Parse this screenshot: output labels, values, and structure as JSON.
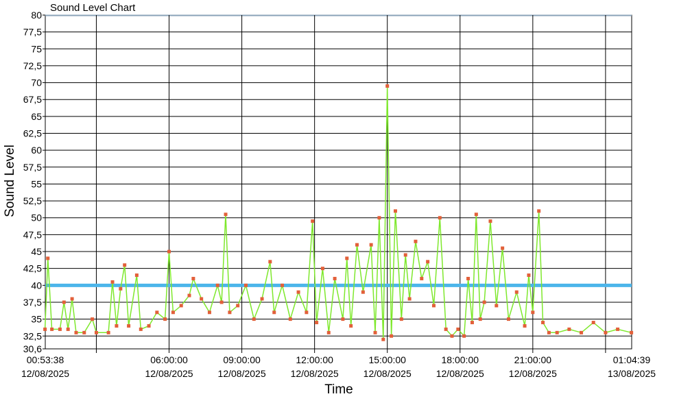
{
  "chart_data": {
    "type": "line",
    "title": "Sound Level Chart",
    "xlabel": "Time",
    "ylabel": "Sound Level",
    "ylim": [
      30.6,
      80
    ],
    "xlim": [
      "12/08/2025 00:53:38",
      "13/08/2025 01:04:39"
    ],
    "grid": true,
    "y_ticks": [
      "80",
      "77,5",
      "75",
      "72,5",
      "70",
      "67,5",
      "65",
      "62,5",
      "60",
      "57,5",
      "55",
      "52,5",
      "50",
      "47,5",
      "45",
      "42,5",
      "40",
      "37,5",
      "35",
      "32,5",
      "30,6"
    ],
    "x_ticks": [
      {
        "time": "00:53:38",
        "date": "12/08/2025"
      },
      {
        "time": "06:00:00",
        "date": "12/08/2025"
      },
      {
        "time": "09:00:00",
        "date": "12/08/2025"
      },
      {
        "time": "12:00:00",
        "date": "12/08/2025"
      },
      {
        "time": "15:00:00",
        "date": "12/08/2025"
      },
      {
        "time": "18:00:00",
        "date": "12/08/2025"
      },
      {
        "time": "21:00:00",
        "date": "12/08/2025"
      },
      {
        "time": "01:04:39",
        "date": "13/08/2025"
      }
    ],
    "threshold": {
      "value": 40,
      "color": "#4cb5ea"
    },
    "series": [
      {
        "line_color": "#7ee82c",
        "marker_color": "#e2603a",
        "points": [
          [
            "00:53",
            33.5
          ],
          [
            "01:00",
            44
          ],
          [
            "01:10",
            33.5
          ],
          [
            "01:30",
            33.5
          ],
          [
            "01:40",
            37.5
          ],
          [
            "01:50",
            33.5
          ],
          [
            "02:00",
            38
          ],
          [
            "02:10",
            33
          ],
          [
            "02:30",
            33
          ],
          [
            "02:50",
            35
          ],
          [
            "03:00",
            33
          ],
          [
            "03:30",
            33
          ],
          [
            "03:40",
            40.5
          ],
          [
            "03:50",
            34
          ],
          [
            "04:00",
            39.5
          ],
          [
            "04:10",
            43
          ],
          [
            "04:20",
            34
          ],
          [
            "04:40",
            41.5
          ],
          [
            "04:50",
            33.5
          ],
          [
            "05:10",
            34
          ],
          [
            "05:30",
            36
          ],
          [
            "05:50",
            35
          ],
          [
            "06:00",
            45
          ],
          [
            "06:10",
            36
          ],
          [
            "06:30",
            37
          ],
          [
            "06:50",
            38.5
          ],
          [
            "07:00",
            41
          ],
          [
            "07:20",
            38
          ],
          [
            "07:40",
            36
          ],
          [
            "08:00",
            40
          ],
          [
            "08:10",
            37.5
          ],
          [
            "08:20",
            50.5
          ],
          [
            "08:30",
            36
          ],
          [
            "08:50",
            37
          ],
          [
            "09:10",
            40
          ],
          [
            "09:30",
            35
          ],
          [
            "09:50",
            38
          ],
          [
            "10:10",
            43.5
          ],
          [
            "10:20",
            36
          ],
          [
            "10:40",
            40
          ],
          [
            "11:00",
            35
          ],
          [
            "11:20",
            39
          ],
          [
            "11:40",
            36
          ],
          [
            "11:55",
            49.5
          ],
          [
            "12:05",
            34.5
          ],
          [
            "12:20",
            42.5
          ],
          [
            "12:35",
            33
          ],
          [
            "12:50",
            41
          ],
          [
            "13:10",
            35
          ],
          [
            "13:20",
            44
          ],
          [
            "13:30",
            34
          ],
          [
            "13:45",
            46
          ],
          [
            "14:00",
            39
          ],
          [
            "14:20",
            46
          ],
          [
            "14:30",
            33
          ],
          [
            "14:40",
            50
          ],
          [
            "14:50",
            32
          ],
          [
            "15:00",
            69.5
          ],
          [
            "15:10",
            32.5
          ],
          [
            "15:20",
            51
          ],
          [
            "15:35",
            35
          ],
          [
            "15:45",
            44.5
          ],
          [
            "15:55",
            38
          ],
          [
            "16:10",
            46.5
          ],
          [
            "16:25",
            41
          ],
          [
            "16:40",
            43.5
          ],
          [
            "16:55",
            37
          ],
          [
            "17:10",
            50
          ],
          [
            "17:25",
            33.5
          ],
          [
            "17:40",
            32.5
          ],
          [
            "17:55",
            33.5
          ],
          [
            "18:10",
            32.5
          ],
          [
            "18:20",
            41
          ],
          [
            "18:30",
            34.5
          ],
          [
            "18:40",
            50.5
          ],
          [
            "18:50",
            35
          ],
          [
            "19:00",
            37.5
          ],
          [
            "19:15",
            49.5
          ],
          [
            "19:30",
            37
          ],
          [
            "19:45",
            45.5
          ],
          [
            "20:00",
            35
          ],
          [
            "20:20",
            39
          ],
          [
            "20:40",
            34
          ],
          [
            "20:50",
            41.5
          ],
          [
            "21:00",
            36
          ],
          [
            "21:15",
            51
          ],
          [
            "21:25",
            34.5
          ],
          [
            "21:40",
            33
          ],
          [
            "22:00",
            33
          ],
          [
            "22:30",
            33.5
          ],
          [
            "23:00",
            33
          ],
          [
            "23:30",
            34.5
          ],
          [
            "00:00",
            33
          ],
          [
            "00:30",
            33.5
          ],
          [
            "01:04",
            33
          ]
        ]
      }
    ]
  }
}
